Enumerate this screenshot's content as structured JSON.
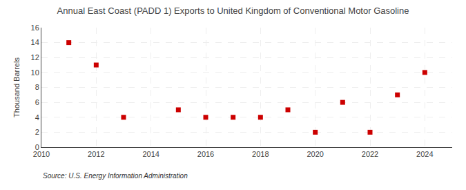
{
  "chart_data": {
    "type": "scatter",
    "title": "Annual East Coast (PADD 1) Exports to United Kingdom of Conventional Motor Gasoline",
    "ylabel": "Thousand Barrels",
    "annotation": "Source: U.S. Energy Information Administration",
    "x": [
      2011,
      2012,
      2013,
      2015,
      2016,
      2017,
      2018,
      2019,
      2020,
      2021,
      2022,
      2023,
      2024
    ],
    "values": [
      14,
      11,
      4,
      5,
      4,
      4,
      4,
      5,
      2,
      6,
      2,
      7,
      10
    ],
    "xlim": [
      2010,
      2025
    ],
    "xticks": [
      2010,
      2012,
      2014,
      2016,
      2018,
      2020,
      2022,
      2024
    ],
    "ylim": [
      0,
      16
    ],
    "yticks": [
      0,
      2,
      4,
      6,
      8,
      10,
      12,
      14,
      16
    ],
    "color": "#cc0000",
    "marker": "square",
    "grid": true
  }
}
